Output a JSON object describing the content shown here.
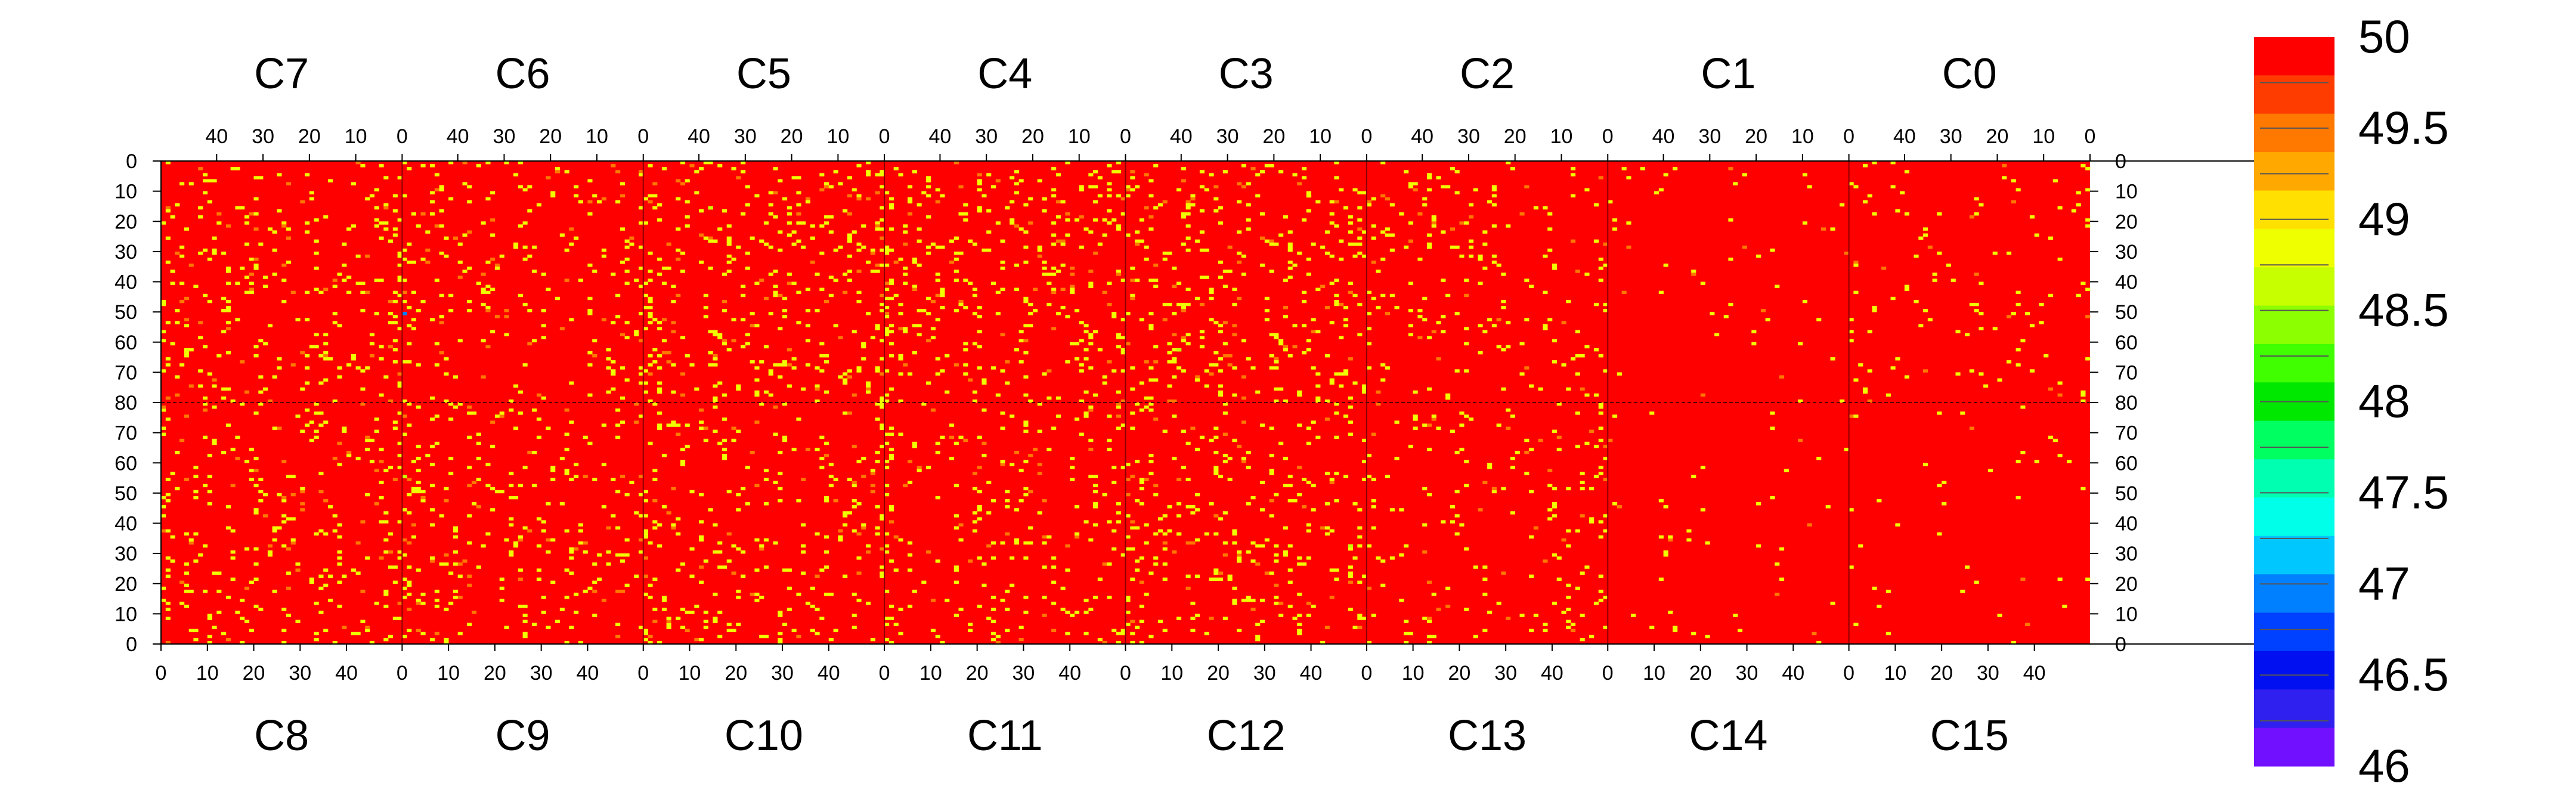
{
  "chart_data": {
    "type": "heatmap",
    "title": "",
    "top_chips": [
      "C7",
      "C6",
      "C5",
      "C4",
      "C3",
      "C2",
      "C1",
      "C0"
    ],
    "bottom_chips": [
      "C8",
      "C9",
      "C10",
      "C11",
      "C12",
      "C13",
      "C14",
      "C15"
    ],
    "column_ticks_top": [
      "40",
      "30",
      "20",
      "10",
      "0"
    ],
    "column_ticks_bottom": [
      "0",
      "10",
      "20",
      "30",
      "40"
    ],
    "row_ticks_upper": [
      "0",
      "10",
      "20",
      "30",
      "40",
      "50",
      "60",
      "70",
      "80"
    ],
    "row_ticks_lower": [
      "70",
      "60",
      "50",
      "40",
      "30",
      "20",
      "10",
      "0"
    ],
    "columns_per_chip": 52,
    "rows_per_chip": 80,
    "zlim": [
      46,
      50
    ],
    "background_value": 50,
    "colorbar": {
      "tick_labels": [
        "50",
        "49.5",
        "49",
        "48.5",
        "48",
        "47.5",
        "47",
        "46.5",
        "46"
      ],
      "levels": [
        50,
        49.75,
        49.5,
        49.25,
        49,
        48.75,
        48.5,
        48.25,
        48,
        47.75,
        47.5,
        47.25,
        47,
        46.75,
        46.5,
        46.25,
        46
      ],
      "colors": [
        "#ff0000",
        "#ff3c00",
        "#ff7800",
        "#ffa800",
        "#ffe000",
        "#f0ff00",
        "#c8ff00",
        "#8cff00",
        "#40ff00",
        "#00e800",
        "#00ff60",
        "#00ffb0",
        "#00ffe8",
        "#00c8ff",
        "#0080ff",
        "#0040ff",
        "#0010f0",
        "#3020f0",
        "#7010ff"
      ]
    },
    "yellow_density_top": [
      0.055,
      0.045,
      0.07,
      0.075,
      0.065,
      0.04,
      0.012,
      0.02
    ],
    "yellow_density_bottom": [
      0.06,
      0.05,
      0.055,
      0.045,
      0.055,
      0.035,
      0.008,
      0.012
    ],
    "rare_points": [
      {
        "chip": "C6",
        "col": 51,
        "row": 50,
        "value": 46.8
      },
      {
        "chip": "C5",
        "col": 37,
        "row": 15,
        "value": 48.6
      },
      {
        "chip": "C4",
        "col": 17,
        "row": 12,
        "value": 48.9
      },
      {
        "chip": "C3",
        "col": 40,
        "row": 62,
        "value": 48.7
      },
      {
        "chip": "C3",
        "col": 12,
        "row": 11,
        "value": 48.8
      },
      {
        "chip": "C9",
        "col": 51,
        "row": 55,
        "value": 48.7
      },
      {
        "chip": "C12",
        "col": 3,
        "row": 32,
        "value": 48.6
      },
      {
        "chip": "C12",
        "col": 40,
        "row": 36,
        "value": 48.8
      }
    ]
  }
}
